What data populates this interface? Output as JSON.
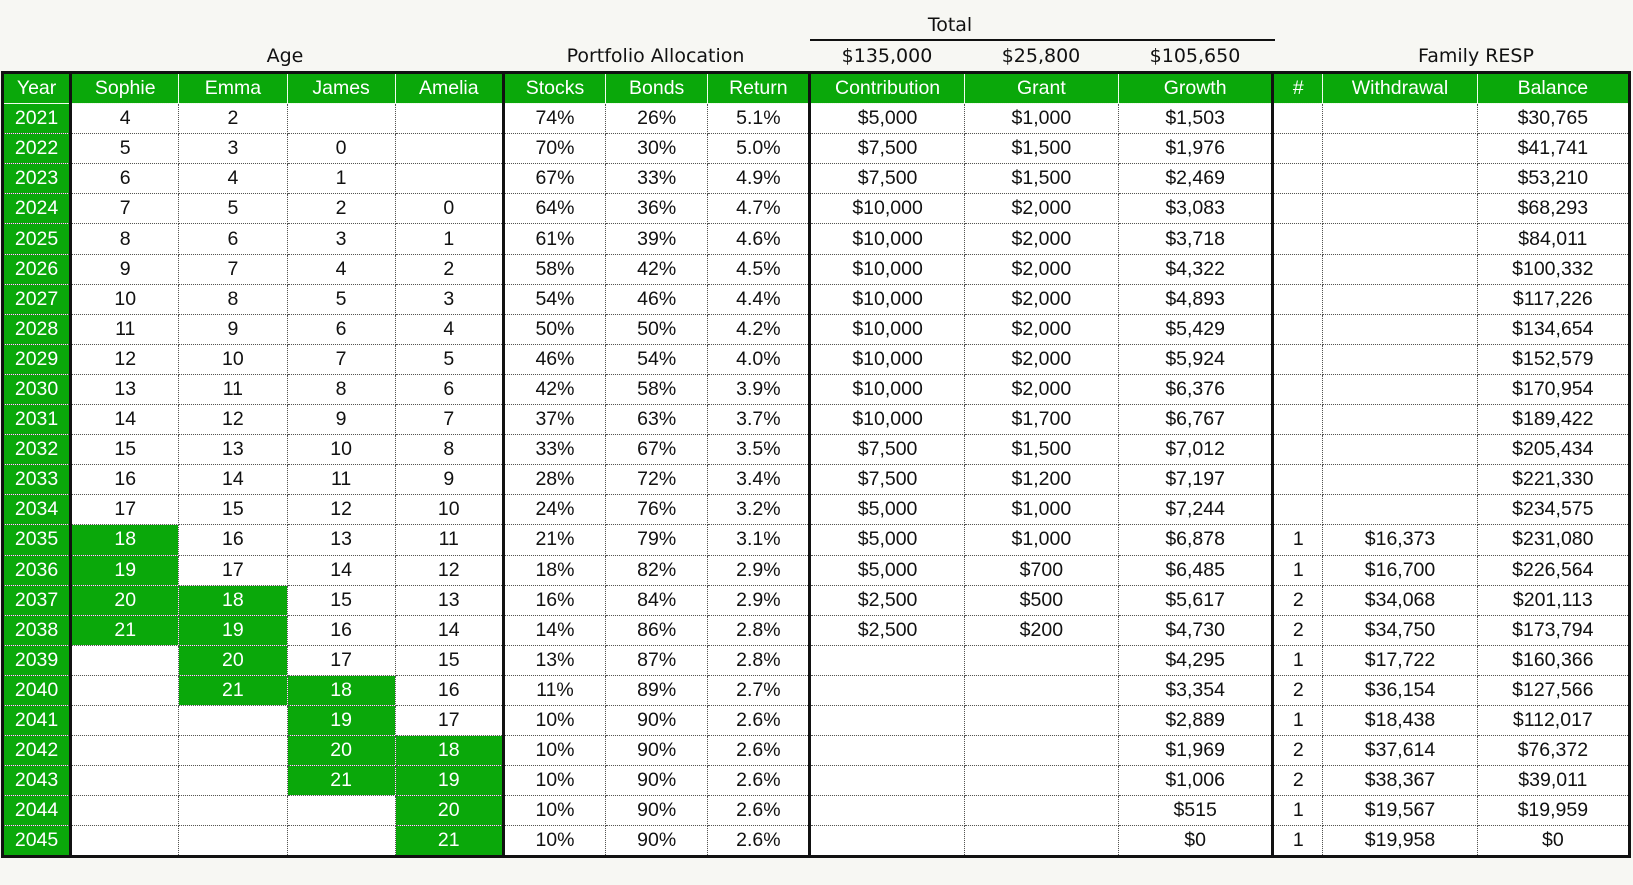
{
  "top": {
    "total_label": "Total",
    "age_label": "Age",
    "portfolio_label": "Portfolio Allocation",
    "total_contribution": "$135,000",
    "total_grant": "$25,800",
    "total_growth": "$105,650",
    "family_label": "Family RESP"
  },
  "columns": [
    "Year",
    "Sophie",
    "Emma",
    "James",
    "Amelia",
    "Stocks",
    "Bonds",
    "Return",
    "Contribution",
    "Grant",
    "Growth",
    "#",
    "Withdrawal",
    "Balance"
  ],
  "rows": [
    [
      "2021",
      "4",
      "2",
      "",
      "",
      "74%",
      "26%",
      "5.1%",
      "$5,000",
      "$1,000",
      "$1,503",
      "",
      "",
      "$30,765"
    ],
    [
      "2022",
      "5",
      "3",
      "0",
      "",
      "70%",
      "30%",
      "5.0%",
      "$7,500",
      "$1,500",
      "$1,976",
      "",
      "",
      "$41,741"
    ],
    [
      "2023",
      "6",
      "4",
      "1",
      "",
      "67%",
      "33%",
      "4.9%",
      "$7,500",
      "$1,500",
      "$2,469",
      "",
      "",
      "$53,210"
    ],
    [
      "2024",
      "7",
      "5",
      "2",
      "0",
      "64%",
      "36%",
      "4.7%",
      "$10,000",
      "$2,000",
      "$3,083",
      "",
      "",
      "$68,293"
    ],
    [
      "2025",
      "8",
      "6",
      "3",
      "1",
      "61%",
      "39%",
      "4.6%",
      "$10,000",
      "$2,000",
      "$3,718",
      "",
      "",
      "$84,011"
    ],
    [
      "2026",
      "9",
      "7",
      "4",
      "2",
      "58%",
      "42%",
      "4.5%",
      "$10,000",
      "$2,000",
      "$4,322",
      "",
      "",
      "$100,332"
    ],
    [
      "2027",
      "10",
      "8",
      "5",
      "3",
      "54%",
      "46%",
      "4.4%",
      "$10,000",
      "$2,000",
      "$4,893",
      "",
      "",
      "$117,226"
    ],
    [
      "2028",
      "11",
      "9",
      "6",
      "4",
      "50%",
      "50%",
      "4.2%",
      "$10,000",
      "$2,000",
      "$5,429",
      "",
      "",
      "$134,654"
    ],
    [
      "2029",
      "12",
      "10",
      "7",
      "5",
      "46%",
      "54%",
      "4.0%",
      "$10,000",
      "$2,000",
      "$5,924",
      "",
      "",
      "$152,579"
    ],
    [
      "2030",
      "13",
      "11",
      "8",
      "6",
      "42%",
      "58%",
      "3.9%",
      "$10,000",
      "$2,000",
      "$6,376",
      "",
      "",
      "$170,954"
    ],
    [
      "2031",
      "14",
      "12",
      "9",
      "7",
      "37%",
      "63%",
      "3.7%",
      "$10,000",
      "$1,700",
      "$6,767",
      "",
      "",
      "$189,422"
    ],
    [
      "2032",
      "15",
      "13",
      "10",
      "8",
      "33%",
      "67%",
      "3.5%",
      "$7,500",
      "$1,500",
      "$7,012",
      "",
      "",
      "$205,434"
    ],
    [
      "2033",
      "16",
      "14",
      "11",
      "9",
      "28%",
      "72%",
      "3.4%",
      "$7,500",
      "$1,200",
      "$7,197",
      "",
      "",
      "$221,330"
    ],
    [
      "2034",
      "17",
      "15",
      "12",
      "10",
      "24%",
      "76%",
      "3.2%",
      "$5,000",
      "$1,000",
      "$7,244",
      "",
      "",
      "$234,575"
    ],
    [
      "2035",
      "18",
      "16",
      "13",
      "11",
      "21%",
      "79%",
      "3.1%",
      "$5,000",
      "$1,000",
      "$6,878",
      "1",
      "$16,373",
      "$231,080"
    ],
    [
      "2036",
      "19",
      "17",
      "14",
      "12",
      "18%",
      "82%",
      "2.9%",
      "$5,000",
      "$700",
      "$6,485",
      "1",
      "$16,700",
      "$226,564"
    ],
    [
      "2037",
      "20",
      "18",
      "15",
      "13",
      "16%",
      "84%",
      "2.9%",
      "$2,500",
      "$500",
      "$5,617",
      "2",
      "$34,068",
      "$201,113"
    ],
    [
      "2038",
      "21",
      "19",
      "16",
      "14",
      "14%",
      "86%",
      "2.8%",
      "$2,500",
      "$200",
      "$4,730",
      "2",
      "$34,750",
      "$173,794"
    ],
    [
      "2039",
      "",
      "20",
      "17",
      "15",
      "13%",
      "87%",
      "2.8%",
      "",
      "",
      "$4,295",
      "1",
      "$17,722",
      "$160,366"
    ],
    [
      "2040",
      "",
      "21",
      "18",
      "16",
      "11%",
      "89%",
      "2.7%",
      "",
      "",
      "$3,354",
      "2",
      "$36,154",
      "$127,566"
    ],
    [
      "2041",
      "",
      "",
      "19",
      "17",
      "10%",
      "90%",
      "2.6%",
      "",
      "",
      "$2,889",
      "1",
      "$18,438",
      "$112,017"
    ],
    [
      "2042",
      "",
      "",
      "20",
      "18",
      "10%",
      "90%",
      "2.6%",
      "",
      "",
      "$1,969",
      "2",
      "$37,614",
      "$76,372"
    ],
    [
      "2043",
      "",
      "",
      "21",
      "19",
      "10%",
      "90%",
      "2.6%",
      "",
      "",
      "$1,006",
      "2",
      "$38,367",
      "$39,011"
    ],
    [
      "2044",
      "",
      "",
      "",
      "20",
      "10%",
      "90%",
      "2.6%",
      "",
      "",
      "$515",
      "1",
      "$19,567",
      "$19,959"
    ],
    [
      "2045",
      "",
      "",
      "",
      "21",
      "10%",
      "90%",
      "2.6%",
      "",
      "",
      "$0",
      "1",
      "$19,958",
      "$0"
    ]
  ],
  "highlight_color": "#0aa80a"
}
